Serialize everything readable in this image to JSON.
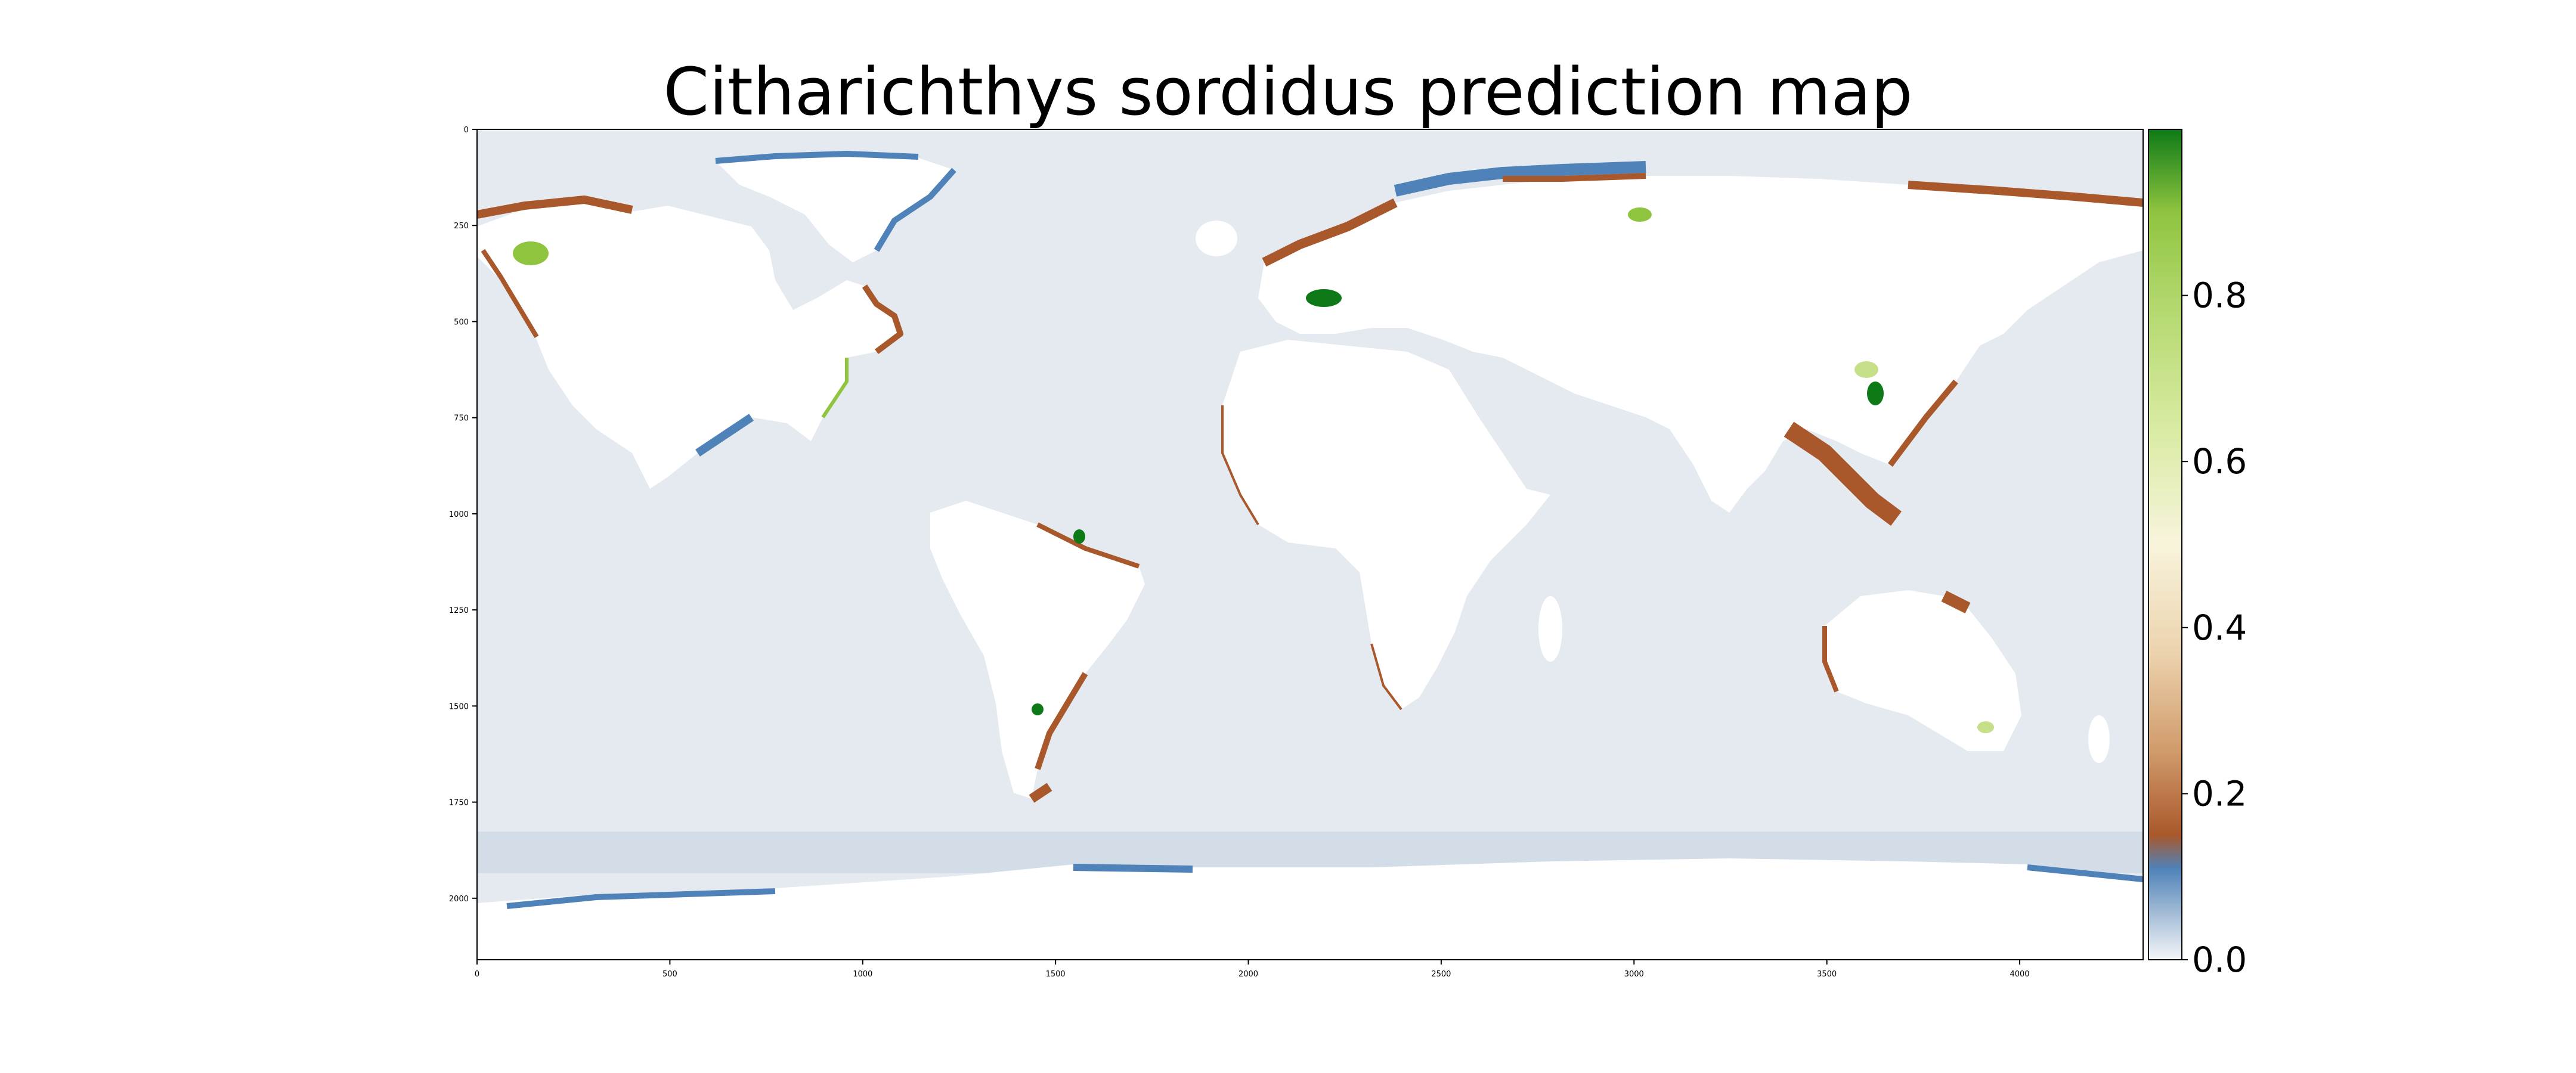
{
  "title": "Citharichthys sordidus prediction map",
  "map": {
    "x_ticks": [
      "0",
      "500",
      "1000",
      "1500",
      "2000",
      "2500",
      "3000",
      "3500",
      "4000"
    ],
    "y_ticks": [
      "0",
      "250",
      "500",
      "750",
      "1000",
      "1250",
      "1500",
      "1750",
      "2000"
    ],
    "x_range": [
      0,
      4320
    ],
    "y_range": [
      0,
      2160
    ]
  },
  "colorbar": {
    "ticks": [
      "0.0",
      "0.2",
      "0.4",
      "0.6",
      "0.8"
    ],
    "range": [
      0,
      1
    ],
    "colors": {
      "ocean_low": "#e4eaf0",
      "shelf_blue": "#4f82b8",
      "brown": "#a9582b",
      "tan": "#e8c9a0",
      "cream": "#f8f4dc",
      "light_green": "#c6e08a",
      "mid_green": "#8fc43f",
      "dark_green": "#0e7a17",
      "land": "#ffffff"
    }
  }
}
